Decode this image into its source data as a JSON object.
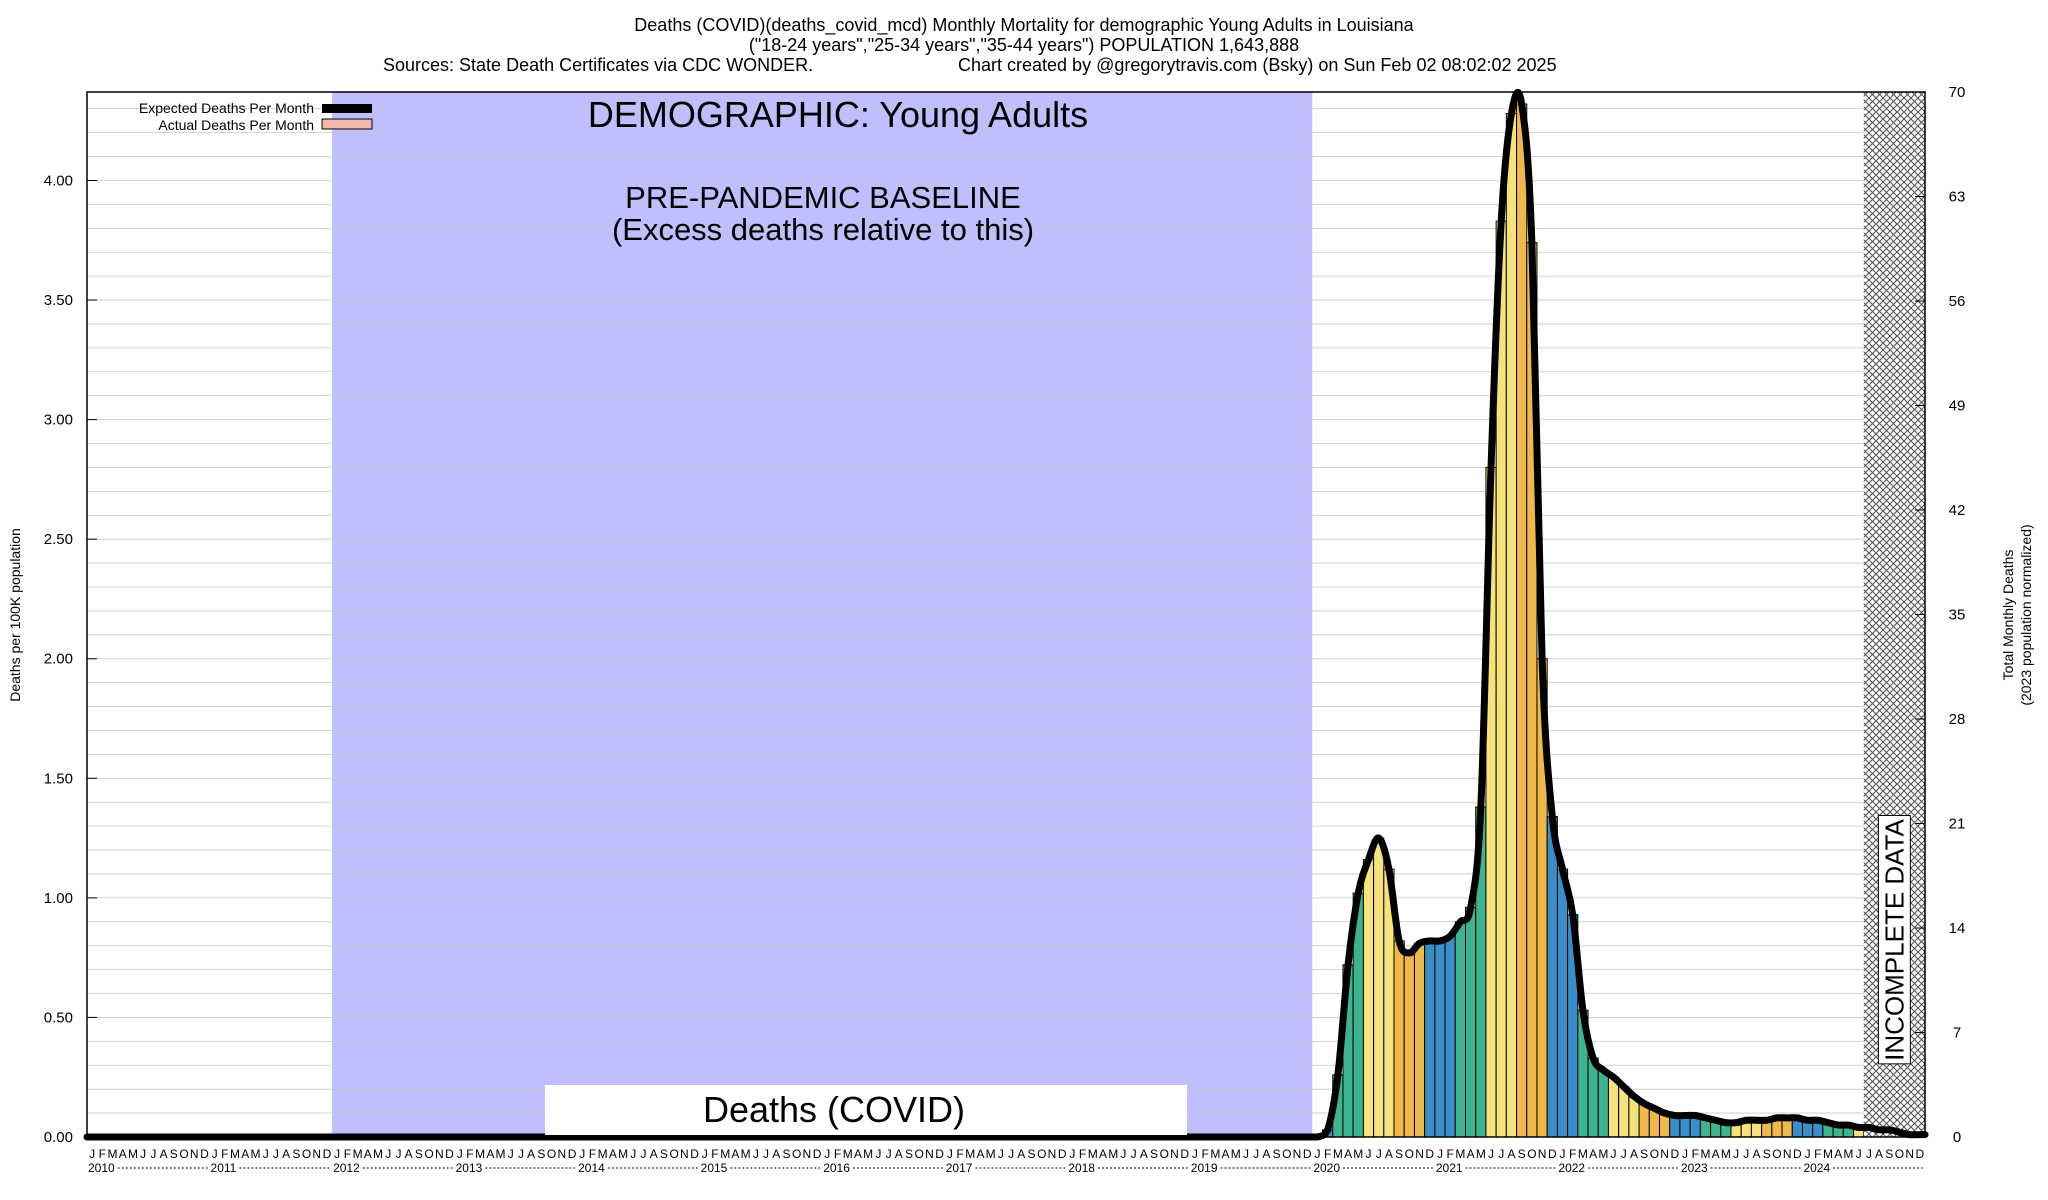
{
  "header": {
    "line1": "Deaths (COVID)(deaths_covid_mcd) Monthly Mortality for demographic Young Adults in Louisiana",
    "line2": "(\"18-24 years\",\"25-34 years\",\"35-44 years\") POPULATION 1,643,888",
    "line3_left": "Sources: State Death Certificates via CDC WONDER.",
    "line3_right": "Chart created by @gregorytravis.com (Bsky) on Sun Feb 02 08:02:02 2025"
  },
  "annotations": {
    "demographic": "DEMOGRAPHIC: Young Adults",
    "baseline_1": "PRE-PANDEMIC BASELINE",
    "baseline_2": "(Excess deaths relative to this)",
    "cause_box": "Deaths (COVID)",
    "incomplete": "INCOMPLETE DATA"
  },
  "legend": {
    "expected": "Expected Deaths Per Month",
    "actual": "Actual Deaths Per Month",
    "expected_color": "#000000",
    "actual_color": "#f2b8b0",
    "placement": "top-left"
  },
  "chart_data": {
    "type": "bar",
    "title": "Deaths (COVID)(deaths_covid_mcd) Monthly Mortality for demographic Young Adults in Louisiana",
    "ylabel_left": "Deaths per 100K population",
    "ylabel_right_1": "Total Monthly Deaths",
    "ylabel_right_2": "(2023 population normalized)",
    "ylim_left": [
      0,
      4.37
    ],
    "yticks_left": [
      "0.00",
      "0.50",
      "1.00",
      "1.50",
      "2.00",
      "2.50",
      "3.00",
      "3.50",
      "4.00"
    ],
    "ylim_right": [
      0,
      70
    ],
    "yticks_right": [
      "0",
      "7",
      "14",
      "21",
      "28",
      "35",
      "42",
      "49",
      "56",
      "63",
      "70"
    ],
    "x_start": "2010-01",
    "x_end": "2024-12",
    "year_labels": [
      "2010",
      "2011",
      "2012",
      "2013",
      "2014",
      "2015",
      "2016",
      "2017",
      "2018",
      "2019",
      "2020",
      "2021",
      "2022",
      "2023",
      "2024"
    ],
    "month_letters": [
      "J",
      "F",
      "M",
      "A",
      "M",
      "J",
      "J",
      "A",
      "S",
      "O",
      "N",
      "D"
    ],
    "baseline_period": [
      "2012-01",
      "2019-12"
    ],
    "baseline_color": "#bfbfff",
    "incomplete_period": [
      "2024-07",
      "2024-12"
    ],
    "season_colors": {
      "winter": "#3a8fc9",
      "spring": "#3db38f",
      "summer": "#f6e27a",
      "fall": "#eeb84a"
    },
    "grid": true,
    "values_2020_2024": [
      0.0,
      0.03,
      0.26,
      0.72,
      1.02,
      1.16,
      1.25,
      1.12,
      0.82,
      0.77,
      0.81,
      0.82,
      0.82,
      0.84,
      0.9,
      0.96,
      1.38,
      2.8,
      3.83,
      4.28,
      4.32,
      3.74,
      2.0,
      1.34,
      1.12,
      0.93,
      0.53,
      0.33,
      0.28,
      0.25,
      0.21,
      0.17,
      0.14,
      0.12,
      0.1,
      0.09,
      0.09,
      0.09,
      0.08,
      0.07,
      0.06,
      0.06,
      0.07,
      0.07,
      0.07,
      0.08,
      0.08,
      0.08,
      0.07,
      0.07,
      0.06,
      0.05,
      0.05,
      0.04,
      0.04,
      0.03,
      0.03,
      0.02,
      0.01,
      0.01
    ]
  }
}
